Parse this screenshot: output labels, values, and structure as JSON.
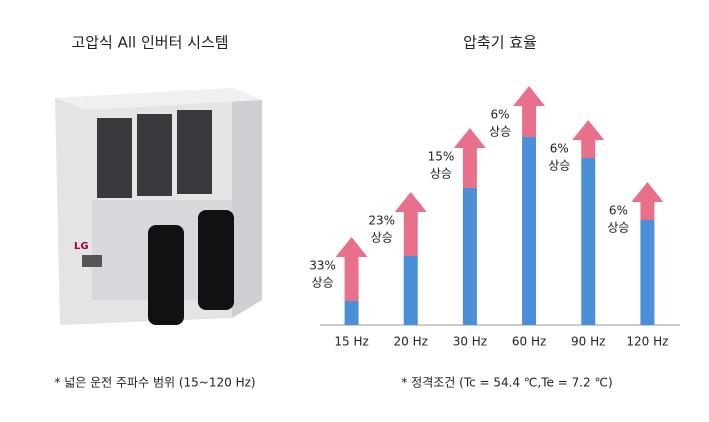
{
  "product": {
    "title": "고압식 All 인버터 시스템",
    "logo": "LG",
    "caption": "* 넓은 운전 주파수 범위 (15~120 Hz)"
  },
  "chart_data": {
    "type": "bar",
    "title": "압축기 효율",
    "categories": [
      "15 Hz",
      "20 Hz",
      "30 Hz",
      "60 Hz",
      "90 Hz",
      "120 Hz"
    ],
    "series": [
      {
        "color": "#4a90d9",
        "values": [
          24,
          69,
          137,
          188,
          167,
          105
        ]
      },
      {
        "color": "#e8708a",
        "values": [
          64,
          64,
          60,
          51,
          38,
          38
        ]
      }
    ],
    "ylim": [
      0,
      250
    ],
    "annotations": [
      {
        "label": "33%",
        "text": "상승"
      },
      {
        "label": "23%",
        "text": "상승"
      },
      {
        "label": "15%",
        "text": "상승"
      },
      {
        "label": "6%",
        "text": "상승"
      },
      {
        "label": "6%",
        "text": "상승"
      },
      {
        "label": "6%",
        "text": "상승"
      }
    ],
    "footnote": "* 정격조건 (Tc = 54.4 ℃,Te = 7.2 ℃)"
  }
}
